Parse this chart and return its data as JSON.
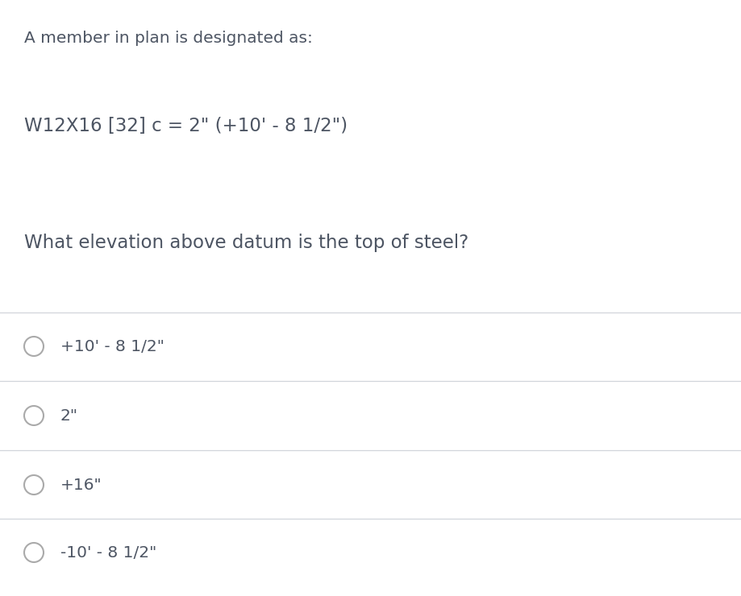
{
  "background_color": "#ffffff",
  "text_color": "#4d5563",
  "line_color": "#d1d5db",
  "intro_text": "A member in plan is designated as:",
  "designation_text": "W12X16 [32] c = 2\" (+10' - 8 1/2\")",
  "question_text": "What elevation above datum is the top of steel?",
  "options": [
    "+10' - 8 1/2\"",
    "2\"",
    "+16\"",
    "-10' - 8 1/2\""
  ],
  "intro_fontsize": 14.5,
  "designation_fontsize": 16.5,
  "question_fontsize": 16.5,
  "option_fontsize": 14.5,
  "fig_width": 9.2,
  "fig_height": 7.4,
  "dpi": 100
}
